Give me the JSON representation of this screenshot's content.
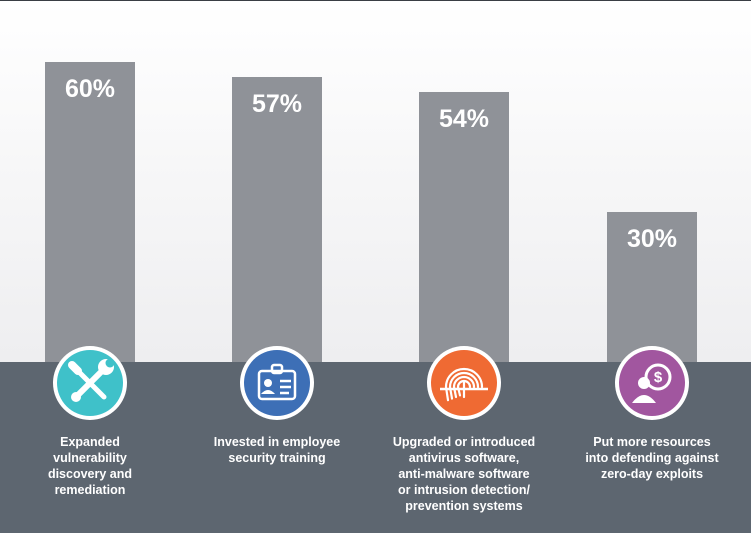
{
  "chart_data": {
    "type": "bar",
    "categories": [
      "Expanded\nvulnerability\ndiscovery and\nremediation",
      "Invested in employee\nsecurity training",
      "Upgraded or introduced\nantivirus software,\nanti-malware software\nor intrusion detection/\nprevention systems",
      "Put more resources\ninto defending against\nzero-day exploits"
    ],
    "values": [
      60,
      57,
      54,
      30
    ],
    "value_labels": [
      "60%",
      "57%",
      "54%",
      "30%"
    ],
    "ylim": [
      0,
      100
    ],
    "grid": false,
    "legend": "none"
  },
  "icons": [
    {
      "name": "wrench-screwdriver-icon",
      "color": "#3fc1c9"
    },
    {
      "name": "id-badge-icon",
      "color": "#3d6fb6"
    },
    {
      "name": "fingerprint-icon",
      "color": "#ef6a33"
    },
    {
      "name": "coin-person-icon",
      "color": "#a1569f"
    }
  ],
  "colors": {
    "bar": "#8f9298",
    "footer": "#5d6670",
    "text": "#ffffff"
  }
}
